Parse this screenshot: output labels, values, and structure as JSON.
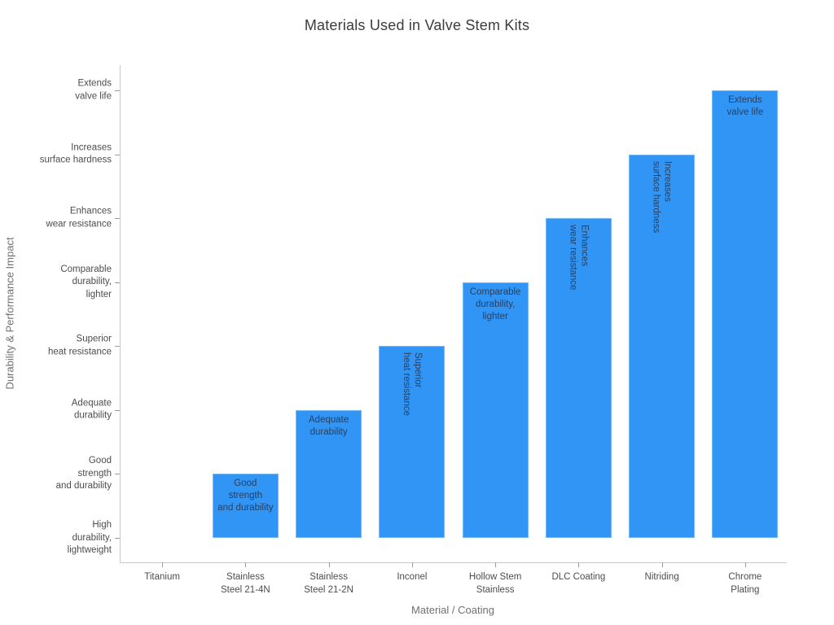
{
  "chart_data": {
    "type": "bar",
    "title": "Materials Used in Valve Stem Kits",
    "xlabel": "Material / Coating",
    "ylabel": "Durability & Performance Impact",
    "grid": false,
    "legend": "none",
    "bar_color": "#3095f5",
    "bar_label_color": "#2a3f5f",
    "ylim_category_units": [
      -0.4,
      7.4
    ],
    "y_categories_bottom_to_top": [
      "High\ndurability,\nlightweight",
      "Good\nstrength\nand durability",
      "Adequate\ndurability",
      "Superior\nheat resistance",
      "Comparable\ndurability,\nlighter",
      "Enhances\nwear resistance",
      "Increases\nsurface hardness",
      "Extends\nvalve life"
    ],
    "categories": [
      "Titanium",
      "Stainless Steel 21-4N",
      "Stainless Steel 21-2N",
      "Inconel",
      "Hollow Stem Stainless",
      "DLC Coating",
      "Nitriding",
      "Chrome Plating"
    ],
    "items": [
      {
        "x_label": "Titanium",
        "impact": "High durability, lightweight",
        "level": 0,
        "bar_label": "",
        "label_rotation": 0
      },
      {
        "x_label": "Stainless\nSteel 21-4N",
        "impact": "Good strength and durability",
        "level": 1,
        "bar_label": "Good\nstrength\nand durability",
        "label_rotation": 0
      },
      {
        "x_label": "Stainless\nSteel 21-2N",
        "impact": "Adequate durability",
        "level": 2,
        "bar_label": "Adequate\ndurability",
        "label_rotation": 0
      },
      {
        "x_label": "Inconel",
        "impact": "Superior heat resistance",
        "level": 3,
        "bar_label": "Superior\nheat resistance",
        "label_rotation": 90
      },
      {
        "x_label": "Hollow Stem\nStainless",
        "impact": "Comparable durability, lighter",
        "level": 4,
        "bar_label": "Comparable\ndurability,\nlighter",
        "label_rotation": 0
      },
      {
        "x_label": "DLC Coating",
        "impact": "Enhances wear resistance",
        "level": 5,
        "bar_label": "Enhances\nwear resistance",
        "label_rotation": 90
      },
      {
        "x_label": "Nitriding",
        "impact": "Increases surface hardness",
        "level": 6,
        "bar_label": "Increases\nsurface hardness",
        "label_rotation": 90
      },
      {
        "x_label": "Chrome\nPlating",
        "impact": "Extends valve life",
        "level": 7,
        "bar_label": "Extends\nvalve life",
        "label_rotation": 0
      }
    ]
  }
}
